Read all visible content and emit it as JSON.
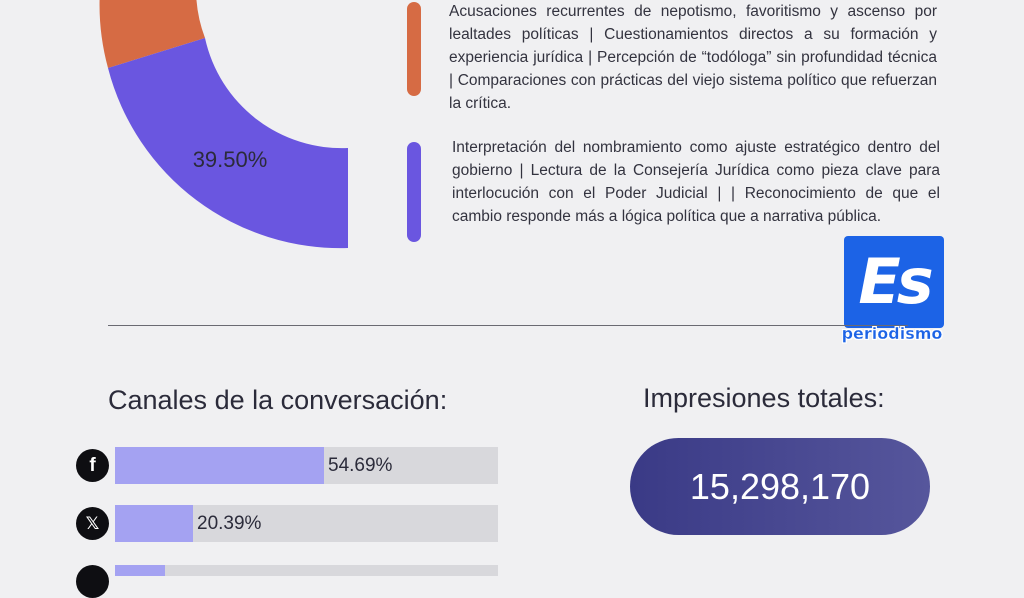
{
  "colors": {
    "orange": "#d66b44",
    "purple": "#6a56e0",
    "bar_fill": "#a4a2f2",
    "bar_track": "#d8d8dc",
    "pill": "#3a3a86",
    "logo_blue": "#1c63e6"
  },
  "chart_data": [
    {
      "type": "pie",
      "slices": [
        {
          "label": "",
          "value": 39.5,
          "display": "39.50%",
          "color": "#6a56e0"
        },
        {
          "label": "",
          "value": null,
          "color": "#d66b44"
        }
      ]
    },
    {
      "type": "bar",
      "title": "Canales de la conversación:",
      "categories": [
        "facebook",
        "x",
        "instagram"
      ],
      "values": [
        54.69,
        20.39,
        null
      ],
      "value_labels": [
        "54.69%",
        "20.39%",
        ""
      ]
    }
  ],
  "notes": {
    "orange_text": "Acusaciones recurrentes de nepotismo, favoritismo y ascenso por lealtades políticas | Cuestionamientos directos a su formación y experiencia jurídica | Percepción de “todóloga” sin profundidad técnica | Comparaciones con prácticas del viejo sistema político que refuerzan la crítica.",
    "purple_text": "Interpretación del nombramiento como ajuste estratégico dentro del gobierno | Lectura de la Consejería Jurídica como pieza clave para interlocución con el Poder Judicial | | Reconocimiento de que el cambio responde más a lógica política que a narrativa pública."
  },
  "logo": {
    "mark": "Es",
    "sub": "periodismo"
  },
  "channels": {
    "title": "Canales de la conversación:",
    "icons": [
      "facebook-icon",
      "x-icon",
      "instagram-icon"
    ]
  },
  "impressions": {
    "title": "Impresiones totales:",
    "value": "15,298,170"
  }
}
